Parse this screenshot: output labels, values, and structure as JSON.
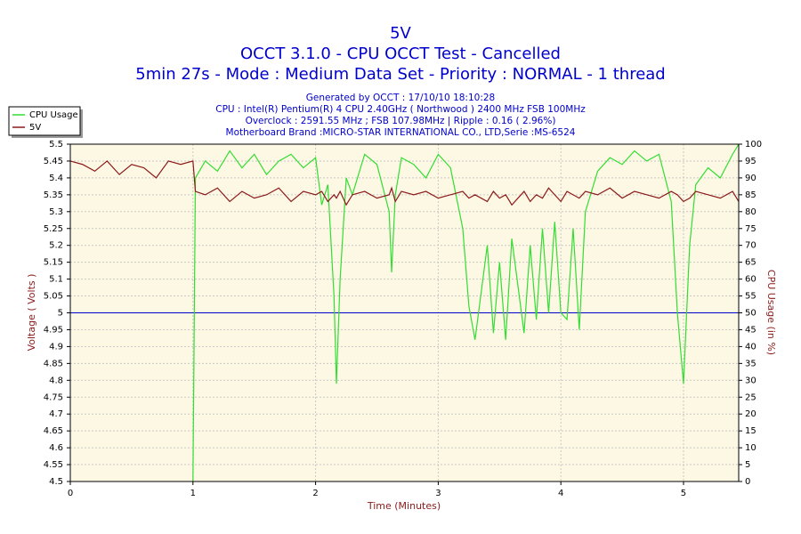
{
  "chart_data": {
    "type": "line",
    "title": "5V",
    "subtitle": [
      "OCCT 3.1.0 - CPU OCCT Test - Cancelled",
      "5min 27s - Mode : Medium Data Set - Priority : NORMAL - 1 thread"
    ],
    "info": [
      "Generated by OCCT : 17/10/10 18:10:28",
      "CPU : Intel(R) Pentium(R) 4 CPU 2.40GHz ( Northwood ) 2400 MHz FSB 100MHz",
      "Overclock : 2591.55 MHz ; FSB 107.98MHz | Ripple : 0.16 ( 2.96%)",
      "Motherboard Brand :MICRO-STAR INTERNATIONAL CO., LTD,Serie :MS-6524"
    ],
    "xlabel": "Time (Minutes)",
    "ylabel": "Voltage ( Volts )",
    "y2label": "CPU Usage (in %)",
    "x": [
      0,
      0.1,
      0.2,
      0.3,
      0.4,
      0.5,
      0.6,
      0.7,
      0.8,
      0.9,
      1.0,
      1.02,
      1.1,
      1.2,
      1.3,
      1.4,
      1.5,
      1.6,
      1.7,
      1.8,
      1.9,
      2.0,
      2.05,
      2.1,
      2.15,
      2.17,
      2.2,
      2.25,
      2.3,
      2.4,
      2.5,
      2.6,
      2.62,
      2.65,
      2.7,
      2.8,
      2.9,
      3.0,
      3.1,
      3.2,
      3.25,
      3.3,
      3.4,
      3.45,
      3.5,
      3.55,
      3.6,
      3.7,
      3.75,
      3.8,
      3.85,
      3.9,
      3.95,
      4.0,
      4.05,
      4.1,
      4.15,
      4.2,
      4.3,
      4.4,
      4.5,
      4.6,
      4.7,
      4.8,
      4.9,
      4.95,
      5.0,
      5.05,
      5.1,
      5.2,
      5.3,
      5.4,
      5.45
    ],
    "series": [
      {
        "name": "CPU Usage",
        "color": "#33dd33",
        "axis": "y2",
        "values": [
          null,
          null,
          null,
          null,
          null,
          null,
          null,
          null,
          null,
          null,
          0,
          90,
          95,
          92,
          98,
          93,
          97,
          91,
          95,
          97,
          93,
          96,
          82,
          88,
          55,
          29,
          60,
          90,
          85,
          97,
          94,
          80,
          62,
          85,
          96,
          94,
          90,
          97,
          93,
          75,
          52,
          42,
          70,
          44,
          65,
          42,
          72,
          44,
          70,
          48,
          75,
          50,
          77,
          50,
          48,
          75,
          45,
          80,
          92,
          96,
          94,
          98,
          95,
          97,
          83,
          50,
          29,
          70,
          88,
          93,
          90,
          97,
          100
        ]
      },
      {
        "name": "5V",
        "color": "#8b1a1a",
        "values": [
          5.45,
          5.44,
          5.42,
          5.45,
          5.41,
          5.44,
          5.43,
          5.4,
          5.45,
          5.44,
          5.45,
          5.36,
          5.35,
          5.37,
          5.33,
          5.36,
          5.34,
          5.35,
          5.37,
          5.33,
          5.36,
          5.35,
          5.36,
          5.33,
          5.35,
          5.34,
          5.36,
          5.32,
          5.35,
          5.36,
          5.34,
          5.35,
          5.37,
          5.33,
          5.36,
          5.35,
          5.36,
          5.34,
          5.35,
          5.36,
          5.34,
          5.35,
          5.33,
          5.36,
          5.34,
          5.35,
          5.32,
          5.36,
          5.33,
          5.35,
          5.34,
          5.37,
          5.35,
          5.33,
          5.36,
          5.35,
          5.34,
          5.36,
          5.35,
          5.37,
          5.34,
          5.36,
          5.35,
          5.34,
          5.36,
          5.35,
          5.33,
          5.34,
          5.36,
          5.35,
          5.34,
          5.36,
          5.33
        ]
      }
    ],
    "reference_line": {
      "value": 5,
      "color": "#0000cc"
    },
    "xlim": [
      0,
      5.45
    ],
    "xticks": [
      0,
      1,
      2,
      3,
      4,
      5
    ],
    "ylim": [
      4.5,
      5.5
    ],
    "yticks": [
      4.5,
      4.55,
      4.6,
      4.65,
      4.7,
      4.75,
      4.8,
      4.85,
      4.9,
      4.95,
      5,
      5.05,
      5.1,
      5.15,
      5.2,
      5.25,
      5.3,
      5.35,
      5.4,
      5.45,
      5.5
    ],
    "y2lim": [
      0,
      100
    ],
    "y2ticks": [
      0,
      5,
      10,
      15,
      20,
      25,
      30,
      35,
      40,
      45,
      50,
      55,
      60,
      65,
      70,
      75,
      80,
      85,
      90,
      95,
      100
    ],
    "grid": true,
    "legend": "top-left"
  }
}
